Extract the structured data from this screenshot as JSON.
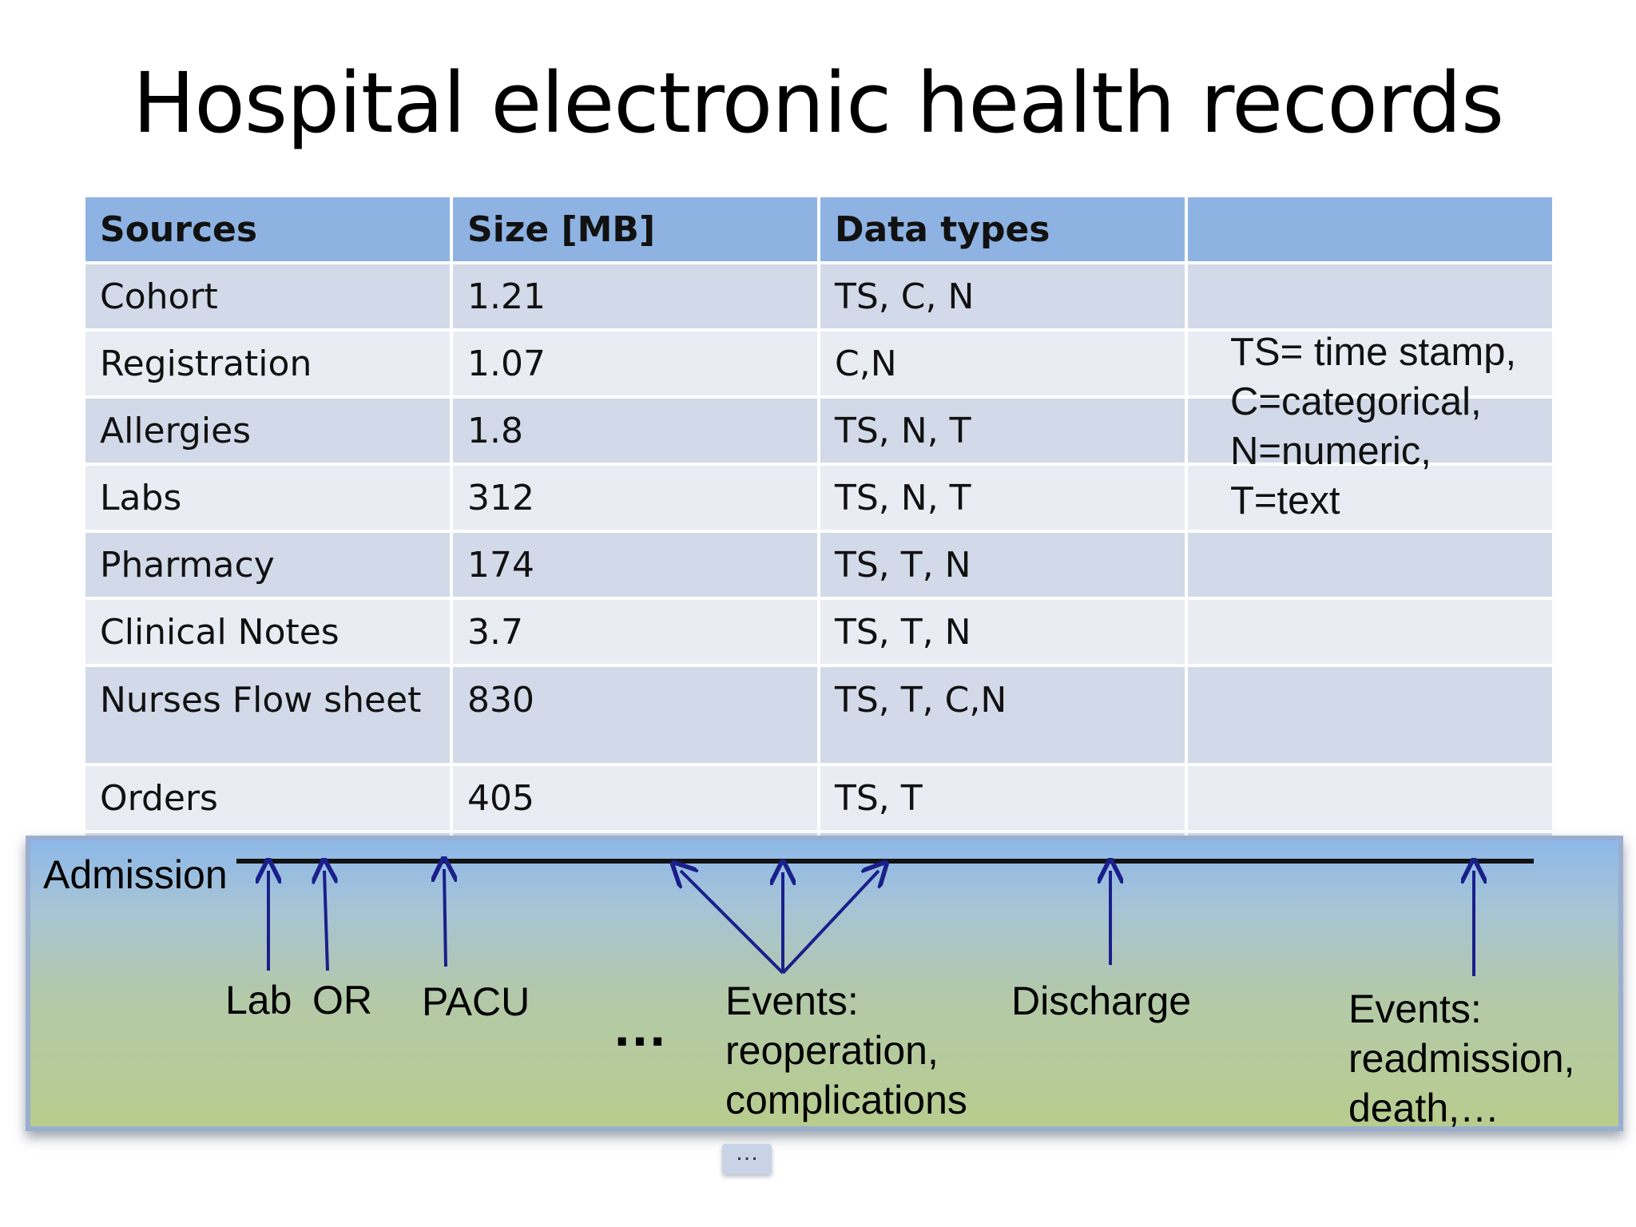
{
  "title": "Hospital electronic health records",
  "table": {
    "headers": [
      "Sources",
      "Size [MB]",
      "Data types",
      ""
    ],
    "rows": [
      {
        "source": "Cohort",
        "size": "1.21",
        "types": "TS, C, N"
      },
      {
        "source": "Registration",
        "size": "1.07",
        "types": "C,N"
      },
      {
        "source": "Allergies",
        "size": "1.8",
        "types": "TS, N, T"
      },
      {
        "source": "Labs",
        "size": "312",
        "types": "TS, N, T"
      },
      {
        "source": "Pharmacy",
        "size": "174",
        "types": "TS, T, N"
      },
      {
        "source": "Clinical Notes",
        "size": "3.7",
        "types": "TS, T, N"
      },
      {
        "source": "Nurses Flow sheet",
        "size": "830",
        "types": "TS, T, C,N"
      },
      {
        "source": "Orders",
        "size": "405",
        "types": "TS, T"
      }
    ]
  },
  "legend": {
    "line1": "TS= time stamp,",
    "line2": "C=categorical,",
    "line3": "N=numeric,",
    "line4": "T=text"
  },
  "timeline": {
    "admission": "Admission",
    "lab": "Lab",
    "or": "OR",
    "pacu": "PACU",
    "ellipsis": "…",
    "events1_line1": "Events:",
    "events1_line2": "reoperation,",
    "events1_line3": "complications",
    "discharge": "Discharge",
    "events2_line1": "Events:",
    "events2_line2": "readmission,",
    "events2_line3": "death,…",
    "bottom_ellipsis": "…"
  },
  "colors": {
    "header_bg": "#8eb3e2",
    "row_odd": "#d2d9e8",
    "row_even": "#e9ecf3",
    "arrow": "#1a1f8a"
  }
}
